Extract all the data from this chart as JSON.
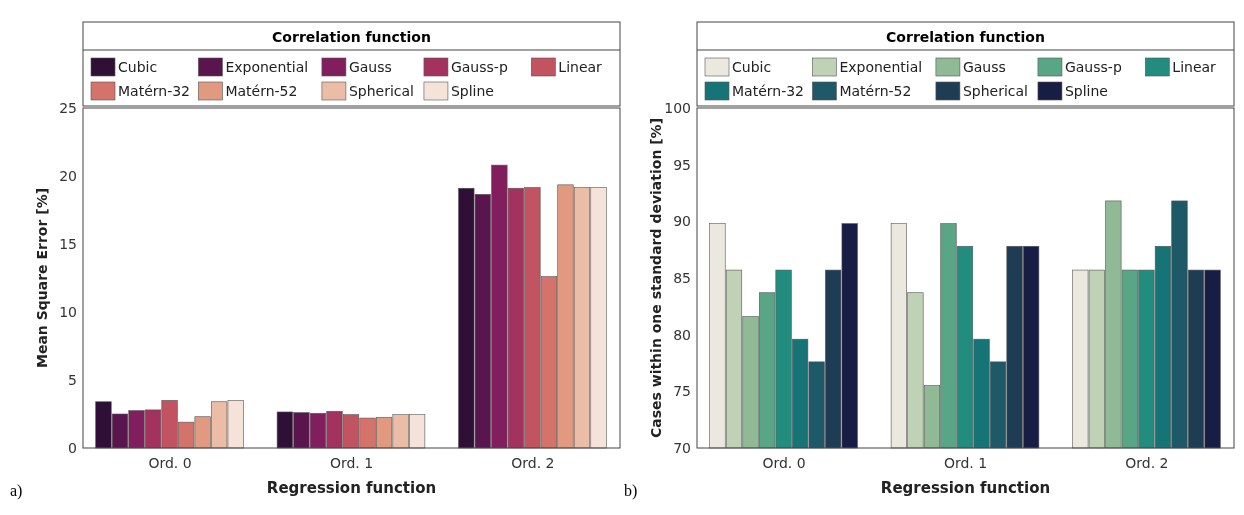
{
  "chart_data": [
    {
      "type": "bar",
      "categories": [
        "Ord. 0",
        "Ord. 1",
        "Ord. 2"
      ],
      "xlabel": "Regression function",
      "ylabel": "Mean Square Error [%]",
      "legend_title": "Correlation function",
      "legend": "top",
      "ylim": [
        0,
        25
      ],
      "yticks": [
        0,
        5,
        10,
        15,
        20,
        25
      ],
      "annotations": [
        "a)"
      ],
      "series": [
        {
          "name": "Cubic",
          "color": "#2f0f35",
          "values": [
            3.4,
            2.65,
            19.1
          ]
        },
        {
          "name": "Exponential",
          "color": "#5a154e",
          "values": [
            2.5,
            2.6,
            18.65
          ]
        },
        {
          "name": "Gauss",
          "color": "#821d5e",
          "values": [
            2.75,
            2.55,
            20.8
          ]
        },
        {
          "name": "Gauss-p",
          "color": "#a3325f",
          "values": [
            2.8,
            2.7,
            19.1
          ]
        },
        {
          "name": "Linear",
          "color": "#c25361",
          "values": [
            3.5,
            2.45,
            19.15
          ]
        },
        {
          "name": "Matérn-32",
          "color": "#d4736a",
          "values": [
            1.9,
            2.2,
            12.6
          ]
        },
        {
          "name": "Matérn-52",
          "color": "#e19a80",
          "values": [
            2.3,
            2.25,
            19.35
          ]
        },
        {
          "name": "Spherical",
          "color": "#ebbca6",
          "values": [
            3.4,
            2.45,
            19.15
          ]
        },
        {
          "name": "Spline",
          "color": "#f5e3da",
          "values": [
            3.5,
            2.45,
            19.15
          ]
        }
      ]
    },
    {
      "type": "bar",
      "categories": [
        "Ord. 0",
        "Ord. 1",
        "Ord. 2"
      ],
      "xlabel": "Regression function",
      "ylabel": "Cases within one standard deviation [%]",
      "legend_title": "Correlation function",
      "legend": "top",
      "ylim": [
        70,
        100
      ],
      "yticks": [
        70,
        75,
        80,
        85,
        90,
        95,
        100
      ],
      "annotations": [
        "b)"
      ],
      "series": [
        {
          "name": "Cubic",
          "color": "#ebe8df",
          "values": [
            89.8,
            89.8,
            85.7
          ]
        },
        {
          "name": "Exponential",
          "color": "#c0d2b6",
          "values": [
            85.7,
            83.7,
            85.7
          ]
        },
        {
          "name": "Gauss",
          "color": "#8fba95",
          "values": [
            81.6,
            75.5,
            91.8
          ]
        },
        {
          "name": "Gauss-p",
          "color": "#58a686",
          "values": [
            83.7,
            89.8,
            85.7
          ]
        },
        {
          "name": "Linear",
          "color": "#228d7e",
          "values": [
            85.7,
            87.8,
            85.7
          ]
        },
        {
          "name": "Matérn-32",
          "color": "#177476",
          "values": [
            79.6,
            79.6,
            87.8
          ]
        },
        {
          "name": "Matérn-52",
          "color": "#1d5966",
          "values": [
            77.6,
            77.6,
            91.8
          ]
        },
        {
          "name": "Spherical",
          "color": "#1f3c55",
          "values": [
            85.7,
            87.8,
            85.7
          ]
        },
        {
          "name": "Spline",
          "color": "#181d45",
          "values": [
            89.8,
            87.8,
            85.7
          ]
        }
      ]
    }
  ]
}
